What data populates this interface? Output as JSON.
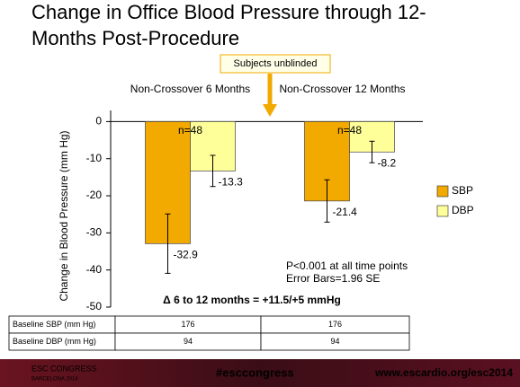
{
  "title_lines": [
    "Change in Office Blood Pressure through 12-",
    "Months Post-Procedure"
  ],
  "callout": "Subjects unblinded",
  "chart_data": {
    "type": "bar",
    "categories": [
      "Non-Crossover 6 Months",
      "Non-Crossover 12 Months"
    ],
    "n_labels": [
      "n=48",
      "n=48"
    ],
    "y_label": "Change in Blood Pressure (mm Hg)",
    "series": [
      {
        "name": "SBP",
        "color": "#f2a900",
        "values": [
          -32.9,
          -21.4
        ],
        "errors": [
          8,
          5.7
        ]
      },
      {
        "name": "DBP",
        "color": "#ffff99",
        "values": [
          -13.3,
          -8.2
        ],
        "errors": [
          4.2,
          2.9
        ]
      }
    ],
    "ylim": [
      -50,
      3
    ],
    "yticks": [
      0,
      -10,
      -20,
      -30,
      -40,
      -50
    ],
    "legend": "right",
    "notes": [
      "P<0.001 at all time points",
      "Error Bars=1.96 SE"
    ],
    "delta": "Δ 6 to 12 months = +11.5/+5  mmHg"
  },
  "table": {
    "rows": [
      [
        "Baseline SBP (mm Hg)",
        176,
        176
      ],
      [
        "Baseline DBP (mm Hg)",
        94,
        94
      ]
    ]
  },
  "footer": {
    "congress": "ESC CONGRESS",
    "city": "BARCELONA 2014",
    "hashtag": "#esccongress",
    "url": "www.escardio.org/esc2014"
  }
}
